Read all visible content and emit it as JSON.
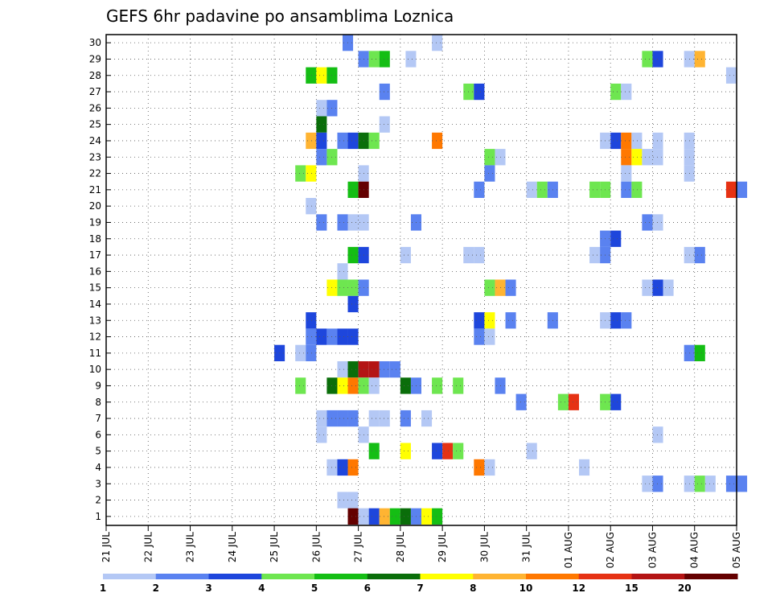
{
  "chart_data": {
    "type": "heatmap",
    "title": "GEFS 6hr padavine po ansamblima Loznica",
    "xlabel": "",
    "ylabel": "",
    "x_tick_labels": [
      "21 JUL",
      "22 JUL",
      "23 JUL",
      "24 JUL",
      "25 JUL",
      "26 JUL",
      "27 JUL",
      "28 JUL",
      "29 JUL",
      "30 JUL",
      "31 JUL",
      "01 AUG",
      "02 AUG",
      "03 AUG",
      "04 AUG",
      "05 AUG"
    ],
    "y_tick_labels": [
      "1",
      "2",
      "3",
      "4",
      "5",
      "6",
      "7",
      "8",
      "9",
      "10",
      "11",
      "12",
      "13",
      "14",
      "15",
      "16",
      "17",
      "18",
      "19",
      "20",
      "21",
      "22",
      "23",
      "24",
      "25",
      "26",
      "27",
      "28",
      "29",
      "30"
    ],
    "xlim_6h_steps": [
      0,
      60
    ],
    "ylim_members": [
      0,
      30
    ],
    "grid": "dotted",
    "colorbar": {
      "labels": [
        "1",
        "2",
        "3",
        "4",
        "5",
        "6",
        "7",
        "8",
        "10",
        "12",
        "15",
        "20"
      ],
      "colors": [
        "#b4c8f5",
        "#5a82f0",
        "#1e46dc",
        "#6ee650",
        "#14be14",
        "#0a6e0a",
        "#ffff00",
        "#ffb432",
        "#ff7800",
        "#e63214",
        "#b41414",
        "#640000"
      ]
    },
    "cells": [
      {
        "member": 30,
        "step": 22.5,
        "level": 1
      },
      {
        "member": 30,
        "step": 31,
        "level": 0
      },
      {
        "member": 29,
        "step": 24,
        "level": 1
      },
      {
        "member": 29,
        "step": 25,
        "level": 3
      },
      {
        "member": 29,
        "step": 26,
        "level": 4
      },
      {
        "member": 29,
        "step": 28.5,
        "level": 0
      },
      {
        "member": 29,
        "step": 51,
        "level": 3
      },
      {
        "member": 29,
        "step": 52,
        "level": 2
      },
      {
        "member": 29,
        "step": 55,
        "level": 0
      },
      {
        "member": 29,
        "step": 56,
        "level": 7
      },
      {
        "member": 28,
        "step": 19,
        "level": 4
      },
      {
        "member": 28,
        "step": 20,
        "level": 6
      },
      {
        "member": 28,
        "step": 21,
        "level": 4
      },
      {
        "member": 28,
        "step": 59,
        "level": 0
      },
      {
        "member": 27,
        "step": 26,
        "level": 1
      },
      {
        "member": 27,
        "step": 34,
        "level": 3
      },
      {
        "member": 27,
        "step": 35,
        "level": 2
      },
      {
        "member": 27,
        "step": 48,
        "level": 3
      },
      {
        "member": 27,
        "step": 49,
        "level": 0
      },
      {
        "member": 26,
        "step": 20,
        "level": 0
      },
      {
        "member": 26,
        "step": 21,
        "level": 1
      },
      {
        "member": 25,
        "step": 20,
        "level": 5
      },
      {
        "member": 25,
        "step": 26,
        "level": 0
      },
      {
        "member": 24,
        "step": 19,
        "level": 7
      },
      {
        "member": 24,
        "step": 20,
        "level": 2
      },
      {
        "member": 24,
        "step": 22,
        "level": 1
      },
      {
        "member": 24,
        "step": 23,
        "level": 2
      },
      {
        "member": 24,
        "step": 24,
        "level": 5
      },
      {
        "member": 24,
        "step": 25,
        "level": 3
      },
      {
        "member": 24,
        "step": 31,
        "level": 8
      },
      {
        "member": 24,
        "step": 47,
        "level": 0
      },
      {
        "member": 24,
        "step": 48,
        "level": 2
      },
      {
        "member": 24,
        "step": 49,
        "level": 8
      },
      {
        "member": 24,
        "step": 50,
        "level": 0
      },
      {
        "member": 24,
        "step": 52,
        "level": 0
      },
      {
        "member": 24,
        "step": 55,
        "level": 0
      },
      {
        "member": 23,
        "step": 20,
        "level": 1
      },
      {
        "member": 23,
        "step": 21,
        "level": 3
      },
      {
        "member": 23,
        "step": 36,
        "level": 3
      },
      {
        "member": 23,
        "step": 37,
        "level": 0
      },
      {
        "member": 23,
        "step": 49,
        "level": 8
      },
      {
        "member": 23,
        "step": 50,
        "level": 6
      },
      {
        "member": 23,
        "step": 51,
        "level": 0
      },
      {
        "member": 23,
        "step": 52,
        "level": 0
      },
      {
        "member": 23,
        "step": 55,
        "level": 0
      },
      {
        "member": 22,
        "step": 18,
        "level": 3
      },
      {
        "member": 22,
        "step": 19,
        "level": 6
      },
      {
        "member": 22,
        "step": 24,
        "level": 0
      },
      {
        "member": 22,
        "step": 36,
        "level": 1
      },
      {
        "member": 22,
        "step": 49,
        "level": 0
      },
      {
        "member": 22,
        "step": 55,
        "level": 0
      },
      {
        "member": 21,
        "step": 23,
        "level": 4
      },
      {
        "member": 21,
        "step": 24,
        "level": 11
      },
      {
        "member": 21,
        "step": 35,
        "level": 1
      },
      {
        "member": 21,
        "step": 40,
        "level": 0
      },
      {
        "member": 21,
        "step": 41,
        "level": 3
      },
      {
        "member": 21,
        "step": 42,
        "level": 1
      },
      {
        "member": 21,
        "step": 46,
        "level": 3
      },
      {
        "member": 21,
        "step": 47,
        "level": 3
      },
      {
        "member": 21,
        "step": 49,
        "level": 1
      },
      {
        "member": 21,
        "step": 50,
        "level": 3
      },
      {
        "member": 21,
        "step": 59,
        "level": 9
      },
      {
        "member": 21,
        "step": 60,
        "level": 1
      },
      {
        "member": 20,
        "step": 19,
        "level": 0
      },
      {
        "member": 19,
        "step": 20,
        "level": 1
      },
      {
        "member": 19,
        "step": 22,
        "level": 1
      },
      {
        "member": 19,
        "step": 23,
        "level": 0
      },
      {
        "member": 19,
        "step": 24,
        "level": 0
      },
      {
        "member": 19,
        "step": 29,
        "level": 1
      },
      {
        "member": 19,
        "step": 51,
        "level": 1
      },
      {
        "member": 19,
        "step": 52,
        "level": 0
      },
      {
        "member": 18,
        "step": 47,
        "level": 1
      },
      {
        "member": 18,
        "step": 48,
        "level": 2
      },
      {
        "member": 17,
        "step": 23,
        "level": 4
      },
      {
        "member": 17,
        "step": 24,
        "level": 2
      },
      {
        "member": 17,
        "step": 28,
        "level": 0
      },
      {
        "member": 17,
        "step": 34,
        "level": 0
      },
      {
        "member": 17,
        "step": 35,
        "level": 0
      },
      {
        "member": 17,
        "step": 46,
        "level": 0
      },
      {
        "member": 17,
        "step": 47,
        "level": 1
      },
      {
        "member": 17,
        "step": 55,
        "level": 0
      },
      {
        "member": 17,
        "step": 56,
        "level": 1
      },
      {
        "member": 16,
        "step": 22,
        "level": 0
      },
      {
        "member": 15,
        "step": 21,
        "level": 6
      },
      {
        "member": 15,
        "step": 22,
        "level": 3
      },
      {
        "member": 15,
        "step": 23,
        "level": 3
      },
      {
        "member": 15,
        "step": 24,
        "level": 1
      },
      {
        "member": 15,
        "step": 36,
        "level": 3
      },
      {
        "member": 15,
        "step": 37,
        "level": 7
      },
      {
        "member": 15,
        "step": 38,
        "level": 1
      },
      {
        "member": 15,
        "step": 51,
        "level": 0
      },
      {
        "member": 15,
        "step": 52,
        "level": 2
      },
      {
        "member": 15,
        "step": 53,
        "level": 0
      },
      {
        "member": 14,
        "step": 23,
        "level": 2
      },
      {
        "member": 13,
        "step": 19,
        "level": 2
      },
      {
        "member": 13,
        "step": 35,
        "level": 2
      },
      {
        "member": 13,
        "step": 36,
        "level": 6
      },
      {
        "member": 13,
        "step": 38,
        "level": 1
      },
      {
        "member": 13,
        "step": 42,
        "level": 1
      },
      {
        "member": 13,
        "step": 47,
        "level": 0
      },
      {
        "member": 13,
        "step": 48,
        "level": 2
      },
      {
        "member": 13,
        "step": 49,
        "level": 1
      },
      {
        "member": 12,
        "step": 19,
        "level": 1
      },
      {
        "member": 12,
        "step": 20,
        "level": 2
      },
      {
        "member": 12,
        "step": 21,
        "level": 1
      },
      {
        "member": 12,
        "step": 22,
        "level": 2
      },
      {
        "member": 12,
        "step": 23,
        "level": 2
      },
      {
        "member": 12,
        "step": 35,
        "level": 1
      },
      {
        "member": 12,
        "step": 36,
        "level": 0
      },
      {
        "member": 11,
        "step": 16,
        "level": 2
      },
      {
        "member": 11,
        "step": 18,
        "level": 0
      },
      {
        "member": 11,
        "step": 19,
        "level": 1
      },
      {
        "member": 11,
        "step": 55,
        "level": 1
      },
      {
        "member": 11,
        "step": 56,
        "level": 4
      },
      {
        "member": 10,
        "step": 22,
        "level": 0
      },
      {
        "member": 10,
        "step": 23,
        "level": 5
      },
      {
        "member": 10,
        "step": 24,
        "level": 10
      },
      {
        "member": 10,
        "step": 25,
        "level": 10
      },
      {
        "member": 10,
        "step": 26,
        "level": 1
      },
      {
        "member": 10,
        "step": 27,
        "level": 1
      },
      {
        "member": 9,
        "step": 18,
        "level": 3
      },
      {
        "member": 9,
        "step": 21,
        "level": 5
      },
      {
        "member": 9,
        "step": 22,
        "level": 6
      },
      {
        "member": 9,
        "step": 23,
        "level": 8
      },
      {
        "member": 9,
        "step": 24,
        "level": 3
      },
      {
        "member": 9,
        "step": 25,
        "level": 0
      },
      {
        "member": 9,
        "step": 28,
        "level": 5
      },
      {
        "member": 9,
        "step": 29,
        "level": 1
      },
      {
        "member": 9,
        "step": 31,
        "level": 3
      },
      {
        "member": 9,
        "step": 33,
        "level": 3
      },
      {
        "member": 9,
        "step": 37,
        "level": 1
      },
      {
        "member": 8,
        "step": 39,
        "level": 1
      },
      {
        "member": 8,
        "step": 43,
        "level": 3
      },
      {
        "member": 8,
        "step": 44,
        "level": 9
      },
      {
        "member": 8,
        "step": 47,
        "level": 3
      },
      {
        "member": 8,
        "step": 48,
        "level": 2
      },
      {
        "member": 7,
        "step": 20,
        "level": 0
      },
      {
        "member": 7,
        "step": 21,
        "level": 1
      },
      {
        "member": 7,
        "step": 22,
        "level": 1
      },
      {
        "member": 7,
        "step": 23,
        "level": 1
      },
      {
        "member": 7,
        "step": 25,
        "level": 0
      },
      {
        "member": 7,
        "step": 26,
        "level": 0
      },
      {
        "member": 7,
        "step": 28,
        "level": 1
      },
      {
        "member": 7,
        "step": 30,
        "level": 0
      },
      {
        "member": 6,
        "step": 20,
        "level": 0
      },
      {
        "member": 6,
        "step": 24,
        "level": 0
      },
      {
        "member": 6,
        "step": 52,
        "level": 0
      },
      {
        "member": 5,
        "step": 25,
        "level": 4
      },
      {
        "member": 5,
        "step": 28,
        "level": 6
      },
      {
        "member": 5,
        "step": 31,
        "level": 2
      },
      {
        "member": 5,
        "step": 32,
        "level": 9
      },
      {
        "member": 5,
        "step": 33,
        "level": 3
      },
      {
        "member": 5,
        "step": 40,
        "level": 0
      },
      {
        "member": 4,
        "step": 21,
        "level": 0
      },
      {
        "member": 4,
        "step": 22,
        "level": 2
      },
      {
        "member": 4,
        "step": 23,
        "level": 8
      },
      {
        "member": 4,
        "step": 35,
        "level": 8
      },
      {
        "member": 4,
        "step": 36,
        "level": 0
      },
      {
        "member": 4,
        "step": 45,
        "level": 0
      },
      {
        "member": 3,
        "step": 51,
        "level": 0
      },
      {
        "member": 3,
        "step": 52,
        "level": 1
      },
      {
        "member": 3,
        "step": 55,
        "level": 0
      },
      {
        "member": 3,
        "step": 56,
        "level": 3
      },
      {
        "member": 3,
        "step": 57,
        "level": 0
      },
      {
        "member": 3,
        "step": 59,
        "level": 1
      },
      {
        "member": 3,
        "step": 60,
        "level": 1
      },
      {
        "member": 2,
        "step": 22,
        "level": 0
      },
      {
        "member": 2,
        "step": 23,
        "level": 0
      },
      {
        "member": 1,
        "step": 23,
        "level": 11
      },
      {
        "member": 1,
        "step": 24,
        "level": 0
      },
      {
        "member": 1,
        "step": 25,
        "level": 2
      },
      {
        "member": 1,
        "step": 26,
        "level": 7
      },
      {
        "member": 1,
        "step": 27,
        "level": 4
      },
      {
        "member": 1,
        "step": 28,
        "level": 5
      },
      {
        "member": 1,
        "step": 29,
        "level": 1
      },
      {
        "member": 1,
        "step": 30,
        "level": 6
      },
      {
        "member": 1,
        "step": 31,
        "level": 4
      }
    ]
  }
}
